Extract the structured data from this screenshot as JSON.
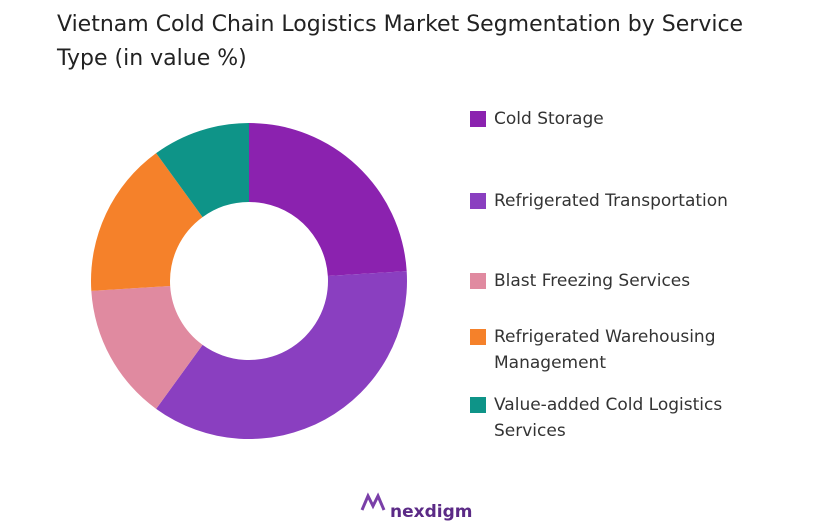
{
  "chart_data": {
    "type": "donut",
    "title": "Vietnam Cold Chain Logistics Market Segmentation by Service Type (in value %)",
    "categories": [
      "Cold Storage",
      "Refrigerated Transportation",
      "Blast Freezing Services",
      "Refrigerated Warehousing Management",
      "Value-added Cold Logistics Services"
    ],
    "values": [
      24,
      36,
      14,
      16,
      10
    ],
    "colors": [
      "#8b22af",
      "#8a3fc0",
      "#e08aa0",
      "#f5812a",
      "#0e9488"
    ],
    "legend": "right"
  },
  "brand": "nexdigm"
}
